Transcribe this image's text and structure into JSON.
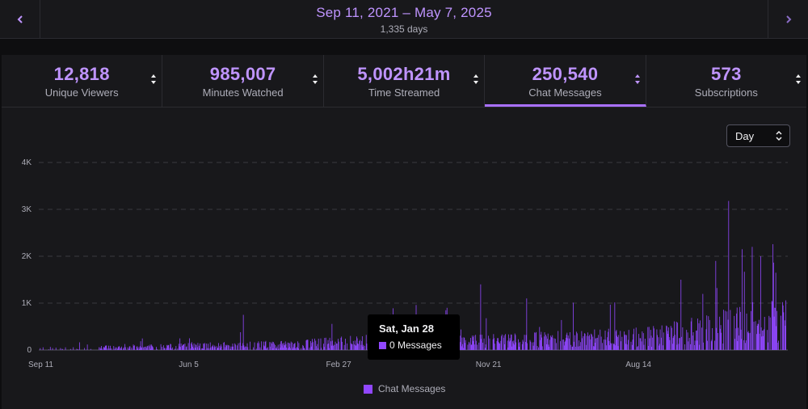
{
  "date_range": {
    "label": "Sep 11, 2021 – May 7, 2025",
    "days": "1,335 days",
    "prev_icon": "chevron-left-icon",
    "next_icon": "chevron-right-icon"
  },
  "stats": [
    {
      "value": "12,818",
      "label": "Unique Viewers",
      "active": false
    },
    {
      "value": "985,007",
      "label": "Minutes Watched",
      "active": false
    },
    {
      "value": "5,002h21m",
      "label": "Time Streamed",
      "active": false
    },
    {
      "value": "250,540",
      "label": "Chat Messages",
      "active": true
    },
    {
      "value": "573",
      "label": "Subscriptions",
      "active": false
    }
  ],
  "granularity": {
    "selected": "Day",
    "icon": "select-chevron-icon"
  },
  "tooltip": {
    "date": "Sat, Jan 28",
    "value_text": "0 Messages"
  },
  "legend": {
    "label": "Chat Messages"
  },
  "colors": {
    "accent": "#bf94ff",
    "bar": "#9147ff",
    "panel": "#18181b",
    "background": "#0e0e10"
  },
  "chart_data": {
    "type": "bar",
    "x_range": [
      "2021-09-11",
      "2025-05-07"
    ],
    "x_ticks": [
      "Sep 11",
      "Jun 5",
      "Feb 27",
      "Nov 21",
      "Aug 14"
    ],
    "y_ticks": [
      "0",
      "1K",
      "2K",
      "3K",
      "4K"
    ],
    "ylim": [
      0,
      4000
    ],
    "grid": true,
    "legend_position": "bottom-center",
    "series": [
      {
        "name": "Chat Messages",
        "peaks": [
          {
            "date": "2022-09-10",
            "value": 750
          },
          {
            "date": "2023-06-04",
            "value": 890
          },
          {
            "date": "2023-07-15",
            "value": 960
          },
          {
            "date": "2023-09-08",
            "value": 900
          },
          {
            "date": "2023-11-07",
            "value": 1400
          },
          {
            "date": "2024-01-28",
            "value": 1100
          },
          {
            "date": "2024-04-20",
            "value": 1010
          },
          {
            "date": "2024-10-29",
            "value": 1500
          },
          {
            "date": "2024-12-30",
            "value": 1900
          },
          {
            "date": "2025-01-22",
            "value": 3180
          },
          {
            "date": "2025-02-15",
            "value": 2150
          },
          {
            "date": "2025-03-05",
            "value": 2200
          },
          {
            "date": "2025-03-20",
            "value": 2000
          },
          {
            "date": "2025-04-28",
            "value": 1020
          }
        ]
      }
    ]
  }
}
